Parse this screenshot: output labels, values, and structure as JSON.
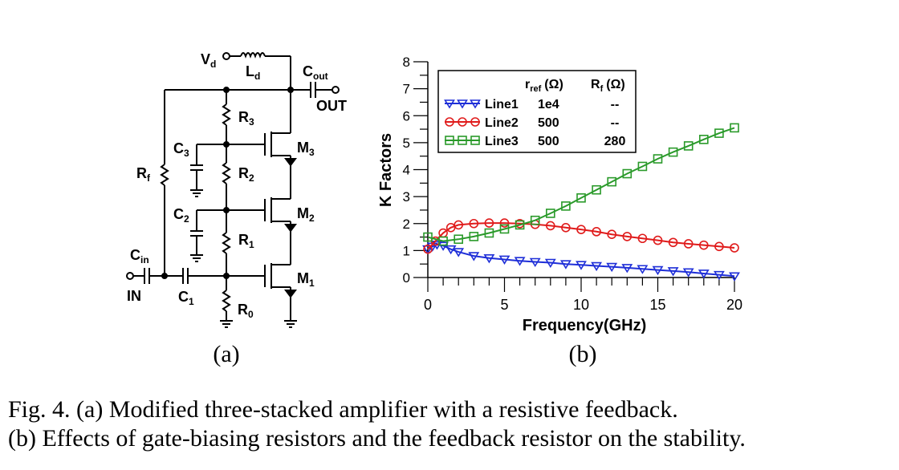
{
  "circuit": {
    "vd": "V",
    "vd_sub": "d",
    "ld": "L",
    "ld_sub": "d",
    "cout": "C",
    "cout_sub": "out",
    "out": "OUT",
    "r3": "R",
    "r3_sub": "3",
    "c3": "C",
    "c3_sub": "3",
    "m3": "M",
    "m3_sub": "3",
    "rf": "R",
    "rf_sub": "f",
    "r2": "R",
    "r2_sub": "2",
    "c2": "C",
    "c2_sub": "2",
    "m2": "M",
    "m2_sub": "2",
    "r1": "R",
    "r1_sub": "1",
    "cin": "C",
    "cin_sub": "in",
    "c1": "C",
    "c1_sub": "1",
    "m1": "M",
    "m1_sub": "1",
    "in": "IN",
    "r0": "R",
    "r0_sub": "0"
  },
  "panel_labels": {
    "a": "(a)",
    "b": "(b)"
  },
  "legend": {
    "header_rref": "r",
    "header_rref_sub": "ref",
    "header_rref_unit": "(Ω)",
    "header_rf": "R",
    "header_rf_sub": "f",
    "header_rf_unit": "(Ω)",
    "rows": [
      {
        "name": "Line1",
        "rref": "1e4",
        "rf": "--"
      },
      {
        "name": "Line2",
        "rref": "500",
        "rf": "--"
      },
      {
        "name": "Line3",
        "rref": "500",
        "rf": "280"
      }
    ]
  },
  "chart_data": {
    "type": "line",
    "xlabel": "Frequency(GHz)",
    "ylabel": "K Factors",
    "xlim": [
      0,
      20
    ],
    "ylim": [
      0,
      8
    ],
    "xticks": [
      0,
      5,
      10,
      15,
      20
    ],
    "yticks": [
      0,
      1,
      2,
      3,
      4,
      5,
      6,
      7,
      8
    ],
    "grid": false,
    "legend_position": "top",
    "series": [
      {
        "name": "Line1",
        "color": "#1f2fd8",
        "marker": "triangle-down",
        "x": [
          0,
          0.3,
          0.6,
          1,
          1.5,
          2,
          3,
          4,
          5,
          6,
          7,
          8,
          9,
          10,
          11,
          12,
          13,
          14,
          15,
          16,
          17,
          18,
          19,
          20
        ],
        "y": [
          1.05,
          1.15,
          1.22,
          1.18,
          1.05,
          0.95,
          0.8,
          0.72,
          0.67,
          0.62,
          0.58,
          0.55,
          0.5,
          0.47,
          0.43,
          0.4,
          0.36,
          0.32,
          0.28,
          0.24,
          0.2,
          0.15,
          0.1,
          0.05
        ]
      },
      {
        "name": "Line2",
        "color": "#e01b1b",
        "marker": "circle",
        "x": [
          0,
          0.5,
          1,
          1.5,
          2,
          3,
          4,
          5,
          6,
          7,
          8,
          9,
          10,
          11,
          12,
          13,
          14,
          15,
          16,
          17,
          18,
          19,
          20
        ],
        "y": [
          1.05,
          1.35,
          1.65,
          1.85,
          1.95,
          2.0,
          2.02,
          2.02,
          2.0,
          1.97,
          1.92,
          1.85,
          1.78,
          1.7,
          1.6,
          1.52,
          1.45,
          1.38,
          1.3,
          1.25,
          1.2,
          1.15,
          1.1
        ]
      },
      {
        "name": "Line3",
        "color": "#2a9a2a",
        "marker": "square",
        "x": [
          0,
          1,
          2,
          3,
          4,
          5,
          6,
          7,
          8,
          9,
          10,
          11,
          12,
          13,
          14,
          15,
          16,
          17,
          18,
          19,
          20
        ],
        "y": [
          1.5,
          1.35,
          1.42,
          1.52,
          1.65,
          1.8,
          1.95,
          2.12,
          2.38,
          2.65,
          2.95,
          3.25,
          3.55,
          3.85,
          4.12,
          4.4,
          4.65,
          4.88,
          5.12,
          5.35,
          5.55
        ]
      }
    ]
  },
  "caption": {
    "line1": "Fig. 4. (a) Modified three-stacked amplifier with a resistive feedback.",
    "line2": "(b) Effects of gate-biasing resistors and the feedback resistor on the stability."
  }
}
